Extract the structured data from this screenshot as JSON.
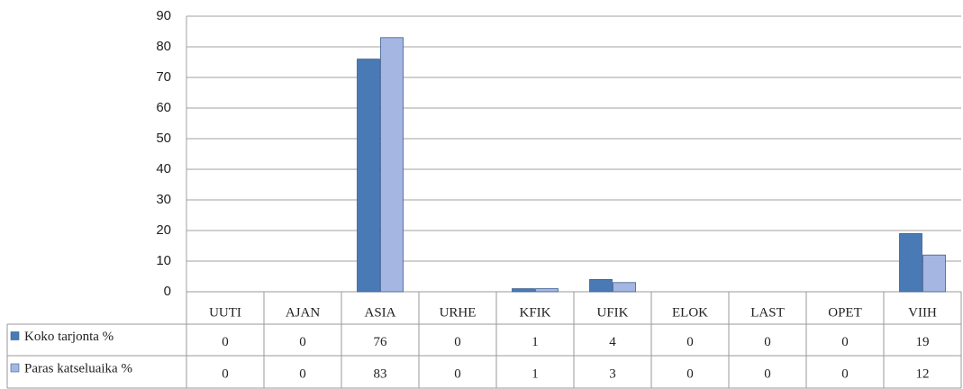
{
  "chart_data": {
    "type": "bar",
    "categories": [
      "UUTI",
      "AJAN",
      "ASIA",
      "URHE",
      "KFIK",
      "UFIK",
      "ELOK",
      "LAST",
      "OPET",
      "VIIH"
    ],
    "series": [
      {
        "name": "Koko tarjonta %",
        "color": "#4a7ab5",
        "values": [
          0,
          0,
          76,
          0,
          1,
          4,
          0,
          0,
          0,
          19
        ]
      },
      {
        "name": "Paras katseluaika %",
        "color": "#a6b6e2",
        "values": [
          0,
          0,
          83,
          0,
          1,
          3,
          0,
          0,
          0,
          12
        ]
      }
    ],
    "ylim": [
      0,
      90
    ],
    "yticks": [
      0,
      10,
      20,
      30,
      40,
      50,
      60,
      70,
      80,
      90
    ],
    "grid": true
  }
}
